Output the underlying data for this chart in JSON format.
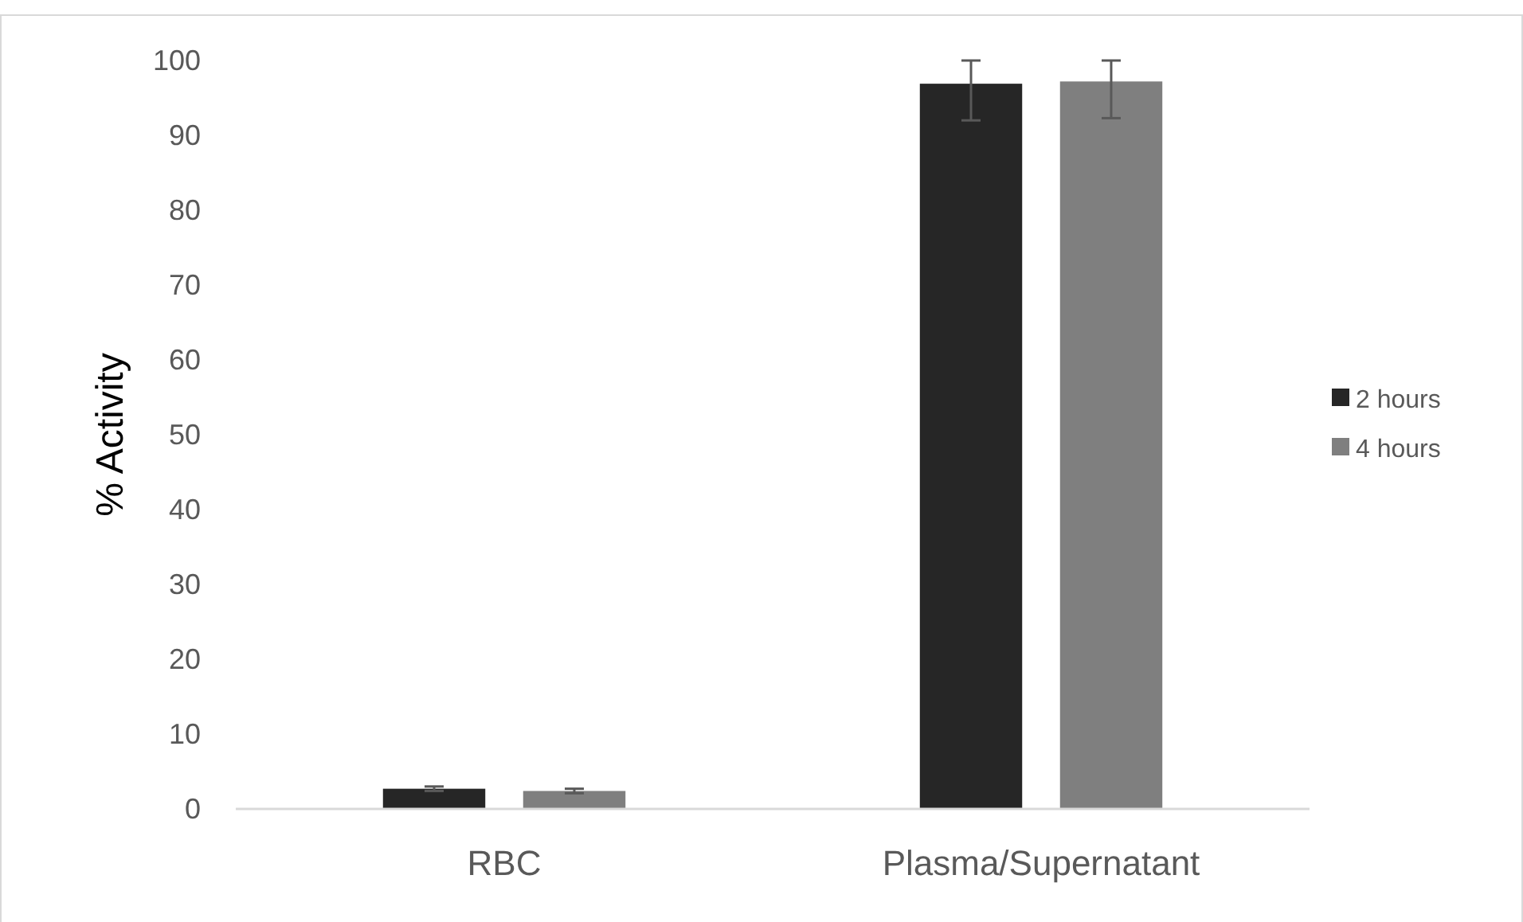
{
  "chart_data": {
    "type": "bar",
    "ylabel": "% Activity",
    "categories": [
      "RBC",
      "Plasma/Supernatant"
    ],
    "series": [
      {
        "name": "2 hours",
        "color": "#262626",
        "values": [
          2.7,
          96.9
        ],
        "errors": [
          [
            2.4,
            3.0
          ],
          [
            92.0,
            100
          ]
        ]
      },
      {
        "name": "4 hours",
        "color": "#7f7f7f",
        "values": [
          2.4,
          97.2
        ],
        "errors": [
          [
            2.1,
            2.7
          ],
          [
            92.3,
            100
          ]
        ]
      }
    ],
    "ylim": [
      0,
      100
    ],
    "yticks": [
      0,
      10,
      20,
      30,
      40,
      50,
      60,
      70,
      80,
      90,
      100
    ],
    "grid": false,
    "legend": "right"
  }
}
